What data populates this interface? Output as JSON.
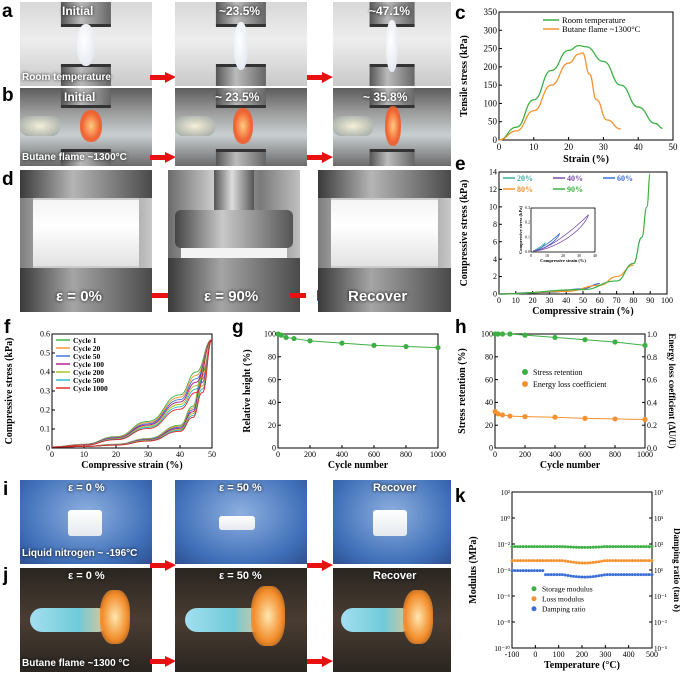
{
  "labels": {
    "a": "a",
    "b": "b",
    "c": "c",
    "d": "d",
    "e": "e",
    "f": "f",
    "g": "g",
    "h": "h",
    "i": "i",
    "j": "j",
    "k": "k"
  },
  "panel_a": {
    "frames": [
      "Initial",
      "~23.5%",
      "~47.1%"
    ],
    "caption": "Room temperature"
  },
  "panel_b": {
    "frames": [
      "Initial",
      "~ 23.5%",
      "~ 35.8%"
    ],
    "caption": "Butane flame ~1300°C"
  },
  "panel_d": {
    "frames": [
      "ε = 0%",
      "ε = 90%",
      "Recover"
    ]
  },
  "panel_i": {
    "frames": [
      "ε = 0 %",
      "ε = 50 %",
      "Recover"
    ],
    "caption": "Liquid nitrogen ~ -196°C"
  },
  "panel_j": {
    "frames": [
      "ε = 0 %",
      "ε = 50 %",
      "Recover"
    ],
    "caption": "Butane flame  ~1300 °C"
  },
  "colors": {
    "green": "#3cb043",
    "orange": "#f5922f",
    "blue": "#3b6fd6",
    "purple": "#7b4ea8",
    "red": "#e81010"
  },
  "chart_data": [
    {
      "id": "c",
      "type": "line",
      "xlabel": "Strain (%)",
      "ylabel": "Tensile stress (kPa)",
      "xlim": [
        0,
        50
      ],
      "ylim": [
        0,
        350
      ],
      "xticks": [
        0,
        10,
        20,
        30,
        40,
        50
      ],
      "yticks": [
        0,
        50,
        100,
        150,
        200,
        250,
        300,
        350
      ],
      "series": [
        {
          "name": "Room temperature",
          "color": "#3cb043",
          "x": [
            0,
            5,
            10,
            15,
            20,
            23,
            25,
            30,
            35,
            40,
            45,
            47
          ],
          "y": [
            0,
            35,
            110,
            190,
            245,
            258,
            255,
            215,
            150,
            90,
            45,
            32
          ]
        },
        {
          "name": "Butane flame ~1300°C",
          "color": "#f5922f",
          "x": [
            0,
            5,
            10,
            15,
            20,
            23,
            24,
            26,
            28,
            31,
            35
          ],
          "y": [
            0,
            25,
            80,
            150,
            210,
            235,
            238,
            180,
            110,
            55,
            30
          ]
        }
      ]
    },
    {
      "id": "e",
      "type": "line",
      "xlabel": "Compressive strain (%)",
      "ylabel": "Compressive stress (kPa)",
      "xlim": [
        0,
        100
      ],
      "ylim": [
        0,
        14
      ],
      "xticks": [
        0,
        10,
        20,
        30,
        40,
        50,
        60,
        70,
        80,
        90,
        100
      ],
      "yticks": [
        0,
        2,
        4,
        6,
        8,
        10,
        12,
        14
      ],
      "series": [
        {
          "name": "20%",
          "color": "#3cb0a0",
          "x": [
            0,
            10,
            20
          ],
          "y": [
            0,
            0.05,
            0.12
          ]
        },
        {
          "name": "40%",
          "color": "#7b4ea8",
          "x": [
            0,
            20,
            40
          ],
          "y": [
            0,
            0.15,
            0.35
          ]
        },
        {
          "name": "60%",
          "color": "#3b6fd6",
          "x": [
            0,
            30,
            50,
            60
          ],
          "y": [
            0,
            0.2,
            0.6,
            1.2
          ]
        },
        {
          "name": "80%",
          "color": "#f5922f",
          "x": [
            0,
            40,
            60,
            70,
            80
          ],
          "y": [
            0,
            0.3,
            1.0,
            2.0,
            3.3
          ]
        },
        {
          "name": "90%",
          "color": "#3cb043",
          "x": [
            0,
            50,
            70,
            80,
            85,
            88,
            90
          ],
          "y": [
            0,
            0.5,
            1.5,
            3.5,
            6.5,
            10,
            13.8
          ]
        }
      ],
      "inset": {
        "xlabel": "Compressive strain (%)",
        "ylabel": "Compressive stress (kPa)",
        "xticks": [
          0,
          10,
          20,
          30,
          40
        ],
        "yticks": [
          0.0,
          0.1,
          0.2,
          0.3
        ]
      }
    },
    {
      "id": "f",
      "type": "line",
      "xlabel": "Compressive strain (%)",
      "ylabel": "Compressive stress (kPa)",
      "xlim": [
        0,
        50
      ],
      "ylim": [
        0,
        0.6
      ],
      "xticks": [
        0,
        10,
        20,
        30,
        40,
        50
      ],
      "yticks": [
        0.0,
        0.1,
        0.2,
        0.3,
        0.4,
        0.5,
        0.6
      ],
      "series": [
        {
          "name": "Cycle 1",
          "color": "#3cb043"
        },
        {
          "name": "Cycle 20",
          "color": "#f5922f"
        },
        {
          "name": "Cycle 50",
          "color": "#3b6fd6"
        },
        {
          "name": "Cycle 100",
          "color": "#b0138f"
        },
        {
          "name": "Cycle 200",
          "color": "#a6c21c"
        },
        {
          "name": "Cycle 500",
          "color": "#27b5c9"
        },
        {
          "name": "Cycle 1000",
          "color": "#e02020"
        }
      ]
    },
    {
      "id": "g",
      "type": "line",
      "xlabel": "Cycle number",
      "ylabel": "Relative height (%)",
      "xlim": [
        0,
        1000
      ],
      "ylim": [
        0,
        100
      ],
      "xticks": [
        0,
        200,
        400,
        600,
        800,
        1000
      ],
      "yticks": [
        0,
        20,
        40,
        60,
        80,
        100
      ],
      "series": [
        {
          "name": "",
          "color": "#3cb043",
          "x": [
            1,
            20,
            50,
            100,
            200,
            400,
            600,
            800,
            1000
          ],
          "y": [
            100,
            99,
            97,
            96,
            94,
            92,
            90,
            89,
            88
          ]
        }
      ]
    },
    {
      "id": "h",
      "type": "line",
      "xlabel": "Cycle number",
      "ylabel": "Stress retention (%)",
      "ylabel2": "Energy loss coefficient (ΔU/U)",
      "xlim": [
        0,
        1000
      ],
      "ylim": [
        0,
        100
      ],
      "ylim2": [
        0,
        1.0
      ],
      "xticks": [
        0,
        200,
        400,
        600,
        800,
        1000
      ],
      "yticks": [
        0,
        20,
        40,
        60,
        80,
        100
      ],
      "yticks2": [
        0.0,
        0.2,
        0.4,
        0.6,
        0.8,
        1.0
      ],
      "series": [
        {
          "name": "Stress retention",
          "color": "#3cb043",
          "x": [
            1,
            20,
            50,
            100,
            200,
            400,
            600,
            800,
            1000
          ],
          "y": [
            100,
            100,
            100,
            100,
            99,
            97,
            95,
            93,
            90
          ]
        },
        {
          "name": "Energy loss coefficient",
          "color": "#f5922f",
          "x": [
            1,
            20,
            50,
            100,
            200,
            400,
            600,
            800,
            1000
          ],
          "y2": [
            0.32,
            0.3,
            0.29,
            0.28,
            0.275,
            0.27,
            0.26,
            0.255,
            0.25
          ]
        }
      ]
    },
    {
      "id": "k",
      "type": "scatter",
      "xlabel": "Temperature (°C)",
      "ylabel": "Modulus (MPa)",
      "ylabel2": "Damping ratio (tan δ)",
      "xlim": [
        -100,
        500
      ],
      "xticks": [
        -100,
        0,
        100,
        200,
        300,
        400,
        500
      ],
      "yticks": [
        "10⁻¹⁰",
        "10⁻⁸",
        "10⁻⁶",
        "10⁻⁴",
        "10⁻²",
        "10⁰",
        "10²"
      ],
      "yticks2": [
        "10⁻⁵",
        "10⁻³",
        "10⁻¹",
        "10¹",
        "10³",
        "10⁵",
        "10⁷"
      ],
      "series": [
        {
          "name": "Storage modulus",
          "color": "#3cb043"
        },
        {
          "name": "Loss modulus",
          "color": "#f5922f"
        },
        {
          "name": "Damping ratio",
          "color": "#3b6fd6"
        }
      ]
    }
  ]
}
